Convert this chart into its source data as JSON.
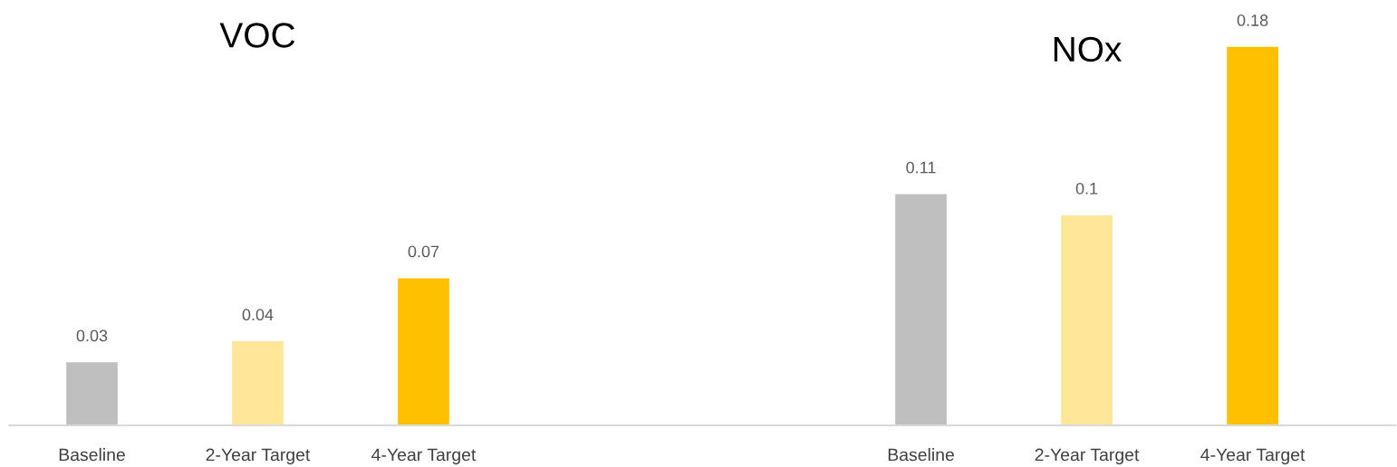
{
  "chart_data": [
    {
      "type": "bar",
      "title": "VOC",
      "categories": [
        "Baseline",
        "2-Year Target",
        "4-Year Target"
      ],
      "values": [
        0.03,
        0.04,
        0.07
      ],
      "colors": [
        "#bfbfbf",
        "#ffe699",
        "#ffc000"
      ],
      "data_labels": true,
      "grid": false,
      "legend": false
    },
    {
      "type": "bar",
      "title": "NOx",
      "categories": [
        "Baseline",
        "2-Year Target",
        "4-Year Target"
      ],
      "values": [
        0.11,
        0.1,
        0.18
      ],
      "colors": [
        "#bfbfbf",
        "#ffe699",
        "#ffc000"
      ],
      "data_labels": true,
      "grid": false,
      "legend": false
    }
  ]
}
